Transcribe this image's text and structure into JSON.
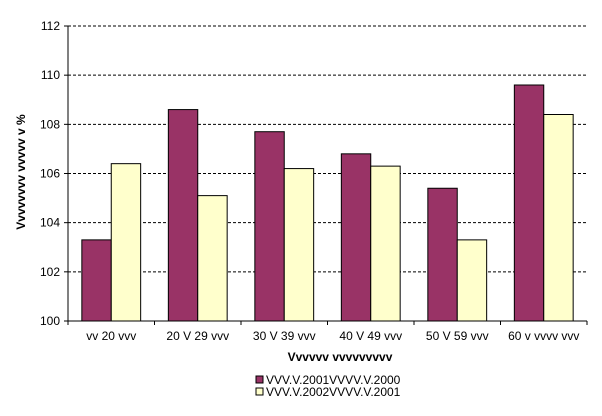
{
  "chart_data": {
    "type": "bar",
    "categories": [
      "vv 20 vvv",
      "20 V 29 vvv",
      "30 V 39 vvv",
      "40 V 49 vvv",
      "50 V 59 vvv",
      "60 v vvvv vvv"
    ],
    "series": [
      {
        "name": "VVV.V.2001VVVV.V.2000",
        "color": "#993366",
        "values": [
          103.3,
          108.6,
          107.7,
          106.8,
          105.4,
          109.6
        ]
      },
      {
        "name": "VVV.V.2002VVVV.V.2001",
        "color": "#FFFFCC",
        "values": [
          106.4,
          105.1,
          106.2,
          106.3,
          103.3,
          108.4
        ]
      }
    ],
    "xlabel": "Vvvvvv vvvvvvvvv",
    "ylabel": "Vvvvvvvv vvvvv v %",
    "ylim": [
      100,
      112
    ],
    "yticks": [
      100,
      102,
      104,
      106,
      108,
      110,
      112
    ],
    "grid": "dashed horizontal",
    "legend_position": "bottom"
  }
}
